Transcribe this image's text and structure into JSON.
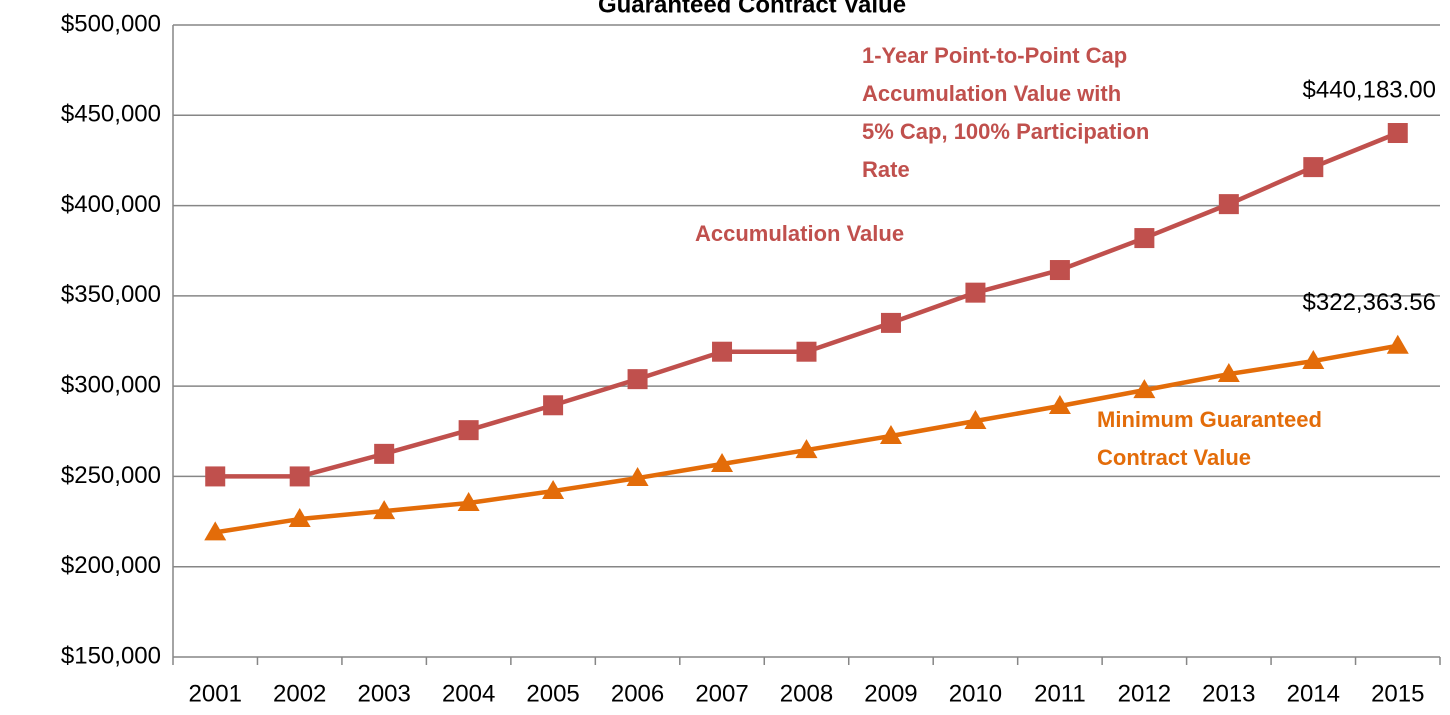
{
  "chart_data": {
    "type": "line",
    "title": "Guaranteed Contract Value",
    "categories": [
      "2001",
      "2002",
      "2003",
      "2004",
      "2005",
      "2006",
      "2007",
      "2008",
      "2009",
      "2010",
      "2011",
      "2012",
      "2013",
      "2014",
      "2015"
    ],
    "series": [
      {
        "name": "Accumulation Value",
        "color": "#c0504d",
        "values": [
          250000,
          250000,
          262500,
          275625,
          289406,
          303877,
          319070,
          319070,
          335024,
          351775,
          364300,
          382000,
          400800,
          421300,
          440183
        ],
        "value_labels": [
          null,
          null,
          null,
          null,
          null,
          null,
          null,
          null,
          null,
          null,
          null,
          null,
          null,
          null,
          "$440,183.00"
        ]
      },
      {
        "name": "Minimum Guaranteed Contract Value",
        "color": "#e36c09",
        "values": [
          219000,
          226400,
          230800,
          235300,
          241900,
          249100,
          256900,
          264600,
          272400,
          280700,
          289000,
          297800,
          306700,
          313900,
          322363.56
        ],
        "value_labels": [
          null,
          null,
          null,
          null,
          null,
          null,
          null,
          null,
          null,
          null,
          null,
          null,
          null,
          null,
          "$322,363.56"
        ]
      }
    ],
    "annotations": [
      {
        "lines": [
          "1-Year Point-to-Point Cap",
          "Accumulation Value with",
          "5% Cap, 100% Participation",
          "Rate"
        ],
        "color": "#c0504d"
      },
      {
        "lines": [
          "Accumulation Value"
        ],
        "color": "#c0504d"
      },
      {
        "lines": [
          "Minimum Guaranteed",
          "Contract Value"
        ],
        "color": "#e36c09"
      }
    ],
    "ylim": [
      150000,
      500000
    ],
    "yticks": [
      {
        "value": 150000,
        "label": "$150,000"
      },
      {
        "value": 200000,
        "label": "$200,000"
      },
      {
        "value": 250000,
        "label": "$250,000"
      },
      {
        "value": 300000,
        "label": "$300,000"
      },
      {
        "value": 350000,
        "label": "$350,000"
      },
      {
        "value": 400000,
        "label": "$400,000"
      },
      {
        "value": 450000,
        "label": "$450,000"
      },
      {
        "value": 500000,
        "label": "$500,000"
      }
    ],
    "grid": true
  }
}
